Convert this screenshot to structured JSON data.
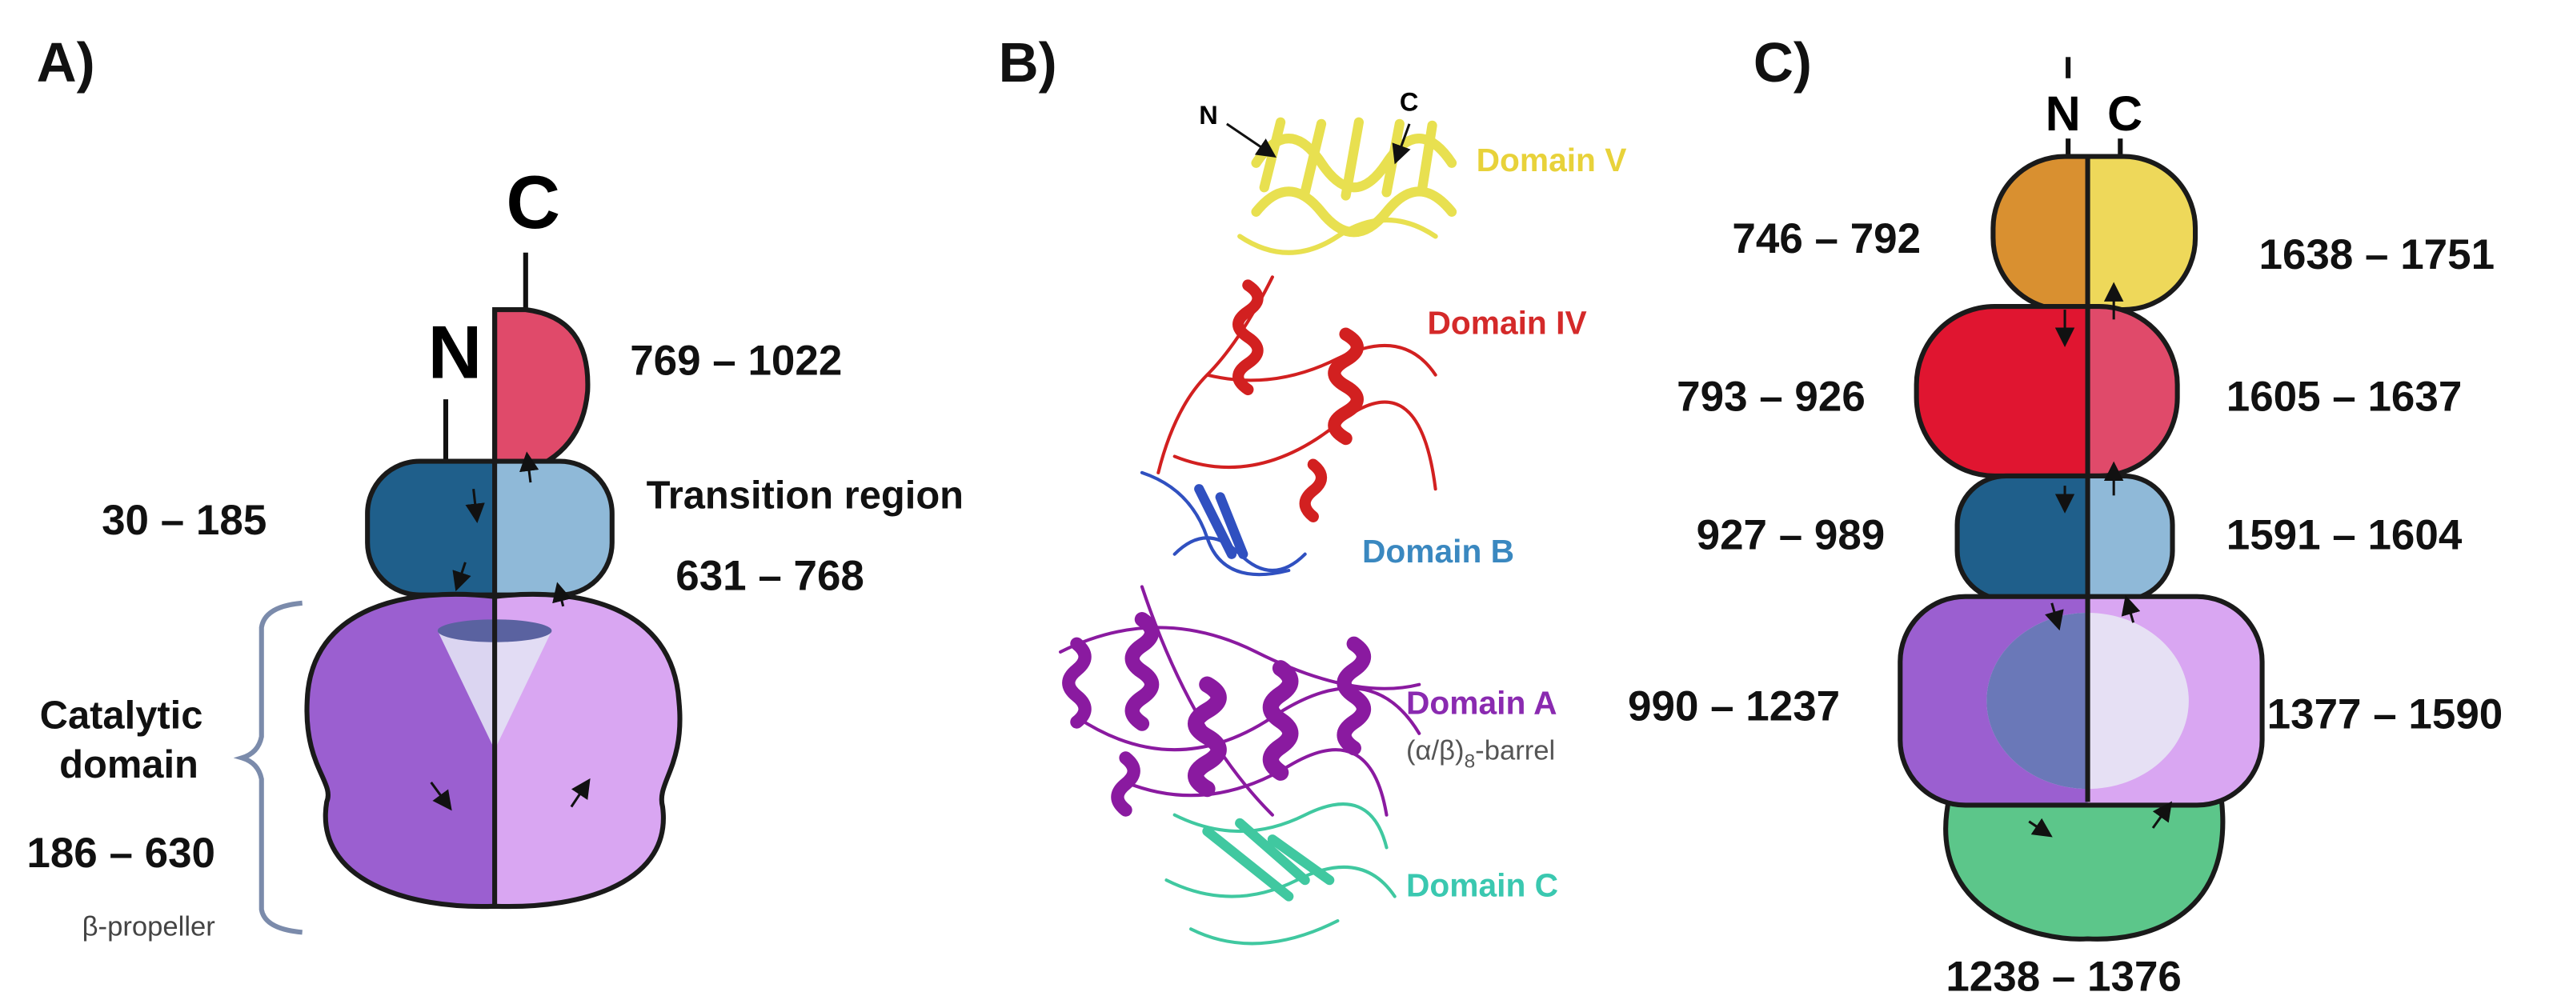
{
  "panel_a": {
    "label": "A)",
    "c_terminus": "C",
    "n_terminus": "N",
    "top_range": "769 – 1022",
    "n_range": "30 – 185",
    "transition_label": "Transition region",
    "transition_range": "631 – 768",
    "catalytic_label": [
      "Catalytic",
      "domain"
    ],
    "catalytic_range": "186 – 630",
    "catalytic_note": "β-propeller"
  },
  "panel_b": {
    "label": "B)",
    "n_terminus": "N",
    "c_terminus": "C",
    "domains": [
      "Domain V",
      "Domain IV",
      "Domain B",
      "Domain A",
      "Domain C"
    ],
    "barrel": {
      "text": "(α/β)",
      "subscript": "8",
      "suffix": "-barrel"
    }
  },
  "panel_c": {
    "label": "C)",
    "n_terminus": "N",
    "c_terminus": "C",
    "left_ranges": [
      "746 – 792",
      "793 – 926",
      "927 – 989",
      "990 – 1237"
    ],
    "right_ranges": [
      "1638 – 1751",
      "1605 – 1637",
      "1591 – 1604",
      "1377 – 1590"
    ],
    "bottom_range": "1238 – 1376"
  }
}
